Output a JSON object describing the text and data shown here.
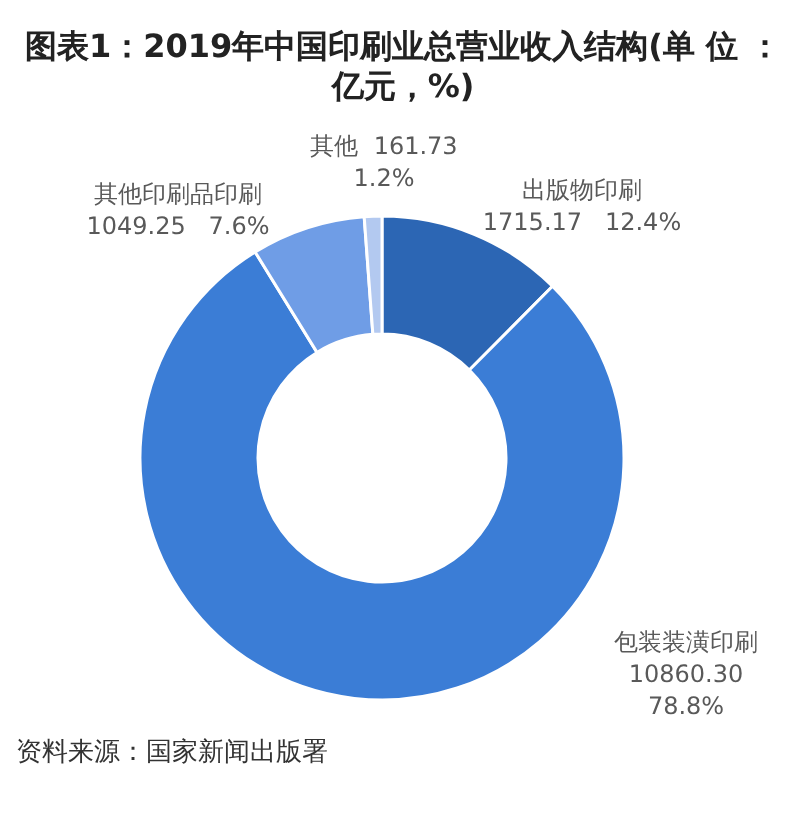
{
  "chart_data": {
    "type": "donut",
    "title": "图表1：2019年中国印刷业总营业收入结构(单 位 ：亿元，%)",
    "categories": [
      "出版物印刷",
      "包装装潢印刷",
      "其他印刷品印刷",
      "其他"
    ],
    "values": [
      1715.17,
      10860.3,
      1049.25,
      161.73
    ],
    "colors": [
      "#2c66b4",
      "#3b7dd6",
      "#6f9de6",
      "#b3c9f0"
    ],
    "value_labels": [
      "1715.17  12.4%",
      "10860.30  78.8%",
      "1049.25  7.6%",
      "161.73  1.2%"
    ],
    "annotations": [
      "资料来源：国家新闻出版署"
    ]
  }
}
